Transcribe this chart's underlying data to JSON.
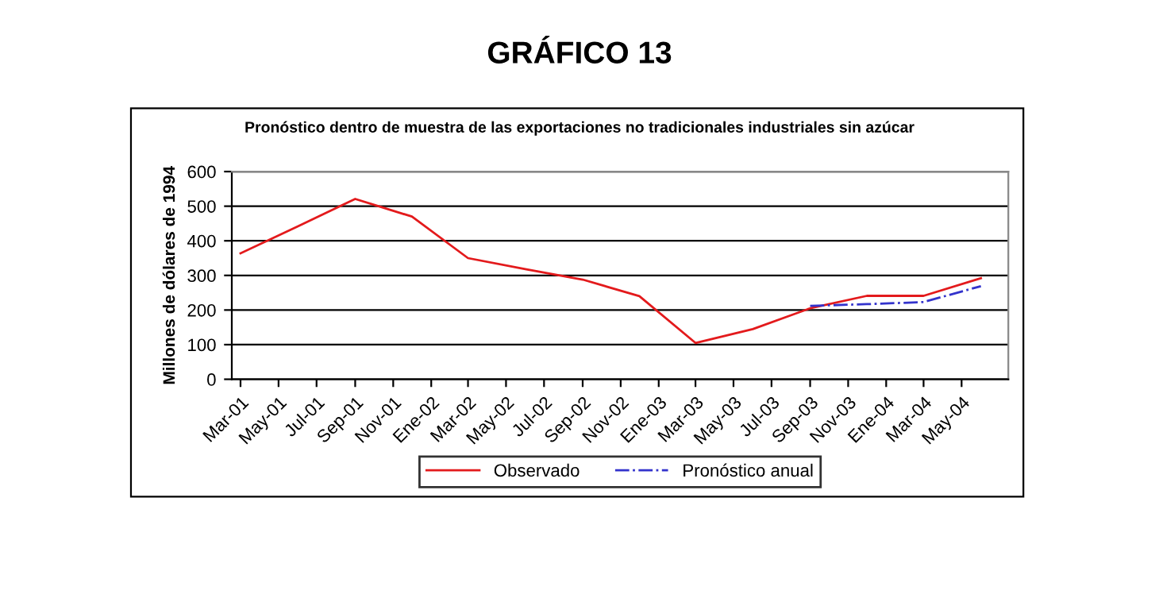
{
  "chart_data": {
    "type": "line",
    "title": "GRÁFICO 13",
    "subtitle": "Pronóstico dentro de muestra de las exportaciones no tradicionales industriales sin azúcar",
    "ylabel": "Millones de dólares de 1994",
    "x": [
      "2001-03",
      "2001-06",
      "2001-09",
      "2001-12",
      "2002-03",
      "2002-06",
      "2002-09",
      "2002-12",
      "2003-03",
      "2003-06",
      "2003-09",
      "2003-12",
      "2004-03",
      "2004-06"
    ],
    "series": [
      {
        "name": "Observado",
        "color": "#e31a1c",
        "line_style": "solid",
        "values": [
          364,
          442,
          521,
          470,
          350,
          318,
          288,
          240,
          105,
          145,
          205,
          241,
          241,
          292
        ]
      },
      {
        "name": "Pronóstico anual",
        "color": "#3333cc",
        "line_style": "dashdot",
        "x": [
          "2003-09",
          "2003-12",
          "2004-03",
          "2004-06"
        ],
        "values": [
          212,
          217,
          223,
          269
        ]
      }
    ],
    "ylim": [
      0,
      600
    ],
    "yticks": [
      0,
      100,
      200,
      300,
      400,
      500,
      600
    ],
    "xlim": [
      "2001-02-15",
      "2004-07-15"
    ],
    "xticks": [
      {
        "value": "2001-03",
        "label": "Mar-01"
      },
      {
        "value": "2001-05",
        "label": "May-01"
      },
      {
        "value": "2001-07",
        "label": "Jul-01"
      },
      {
        "value": "2001-09",
        "label": "Sep-01"
      },
      {
        "value": "2001-11",
        "label": "Nov-01"
      },
      {
        "value": "2002-01",
        "label": "Ene-02"
      },
      {
        "value": "2002-03",
        "label": "Mar-02"
      },
      {
        "value": "2002-05",
        "label": "May-02"
      },
      {
        "value": "2002-07",
        "label": "Jul-02"
      },
      {
        "value": "2002-09",
        "label": "Sep-02"
      },
      {
        "value": "2002-11",
        "label": "Nov-02"
      },
      {
        "value": "2003-01",
        "label": "Ene-03"
      },
      {
        "value": "2003-03",
        "label": "Mar-03"
      },
      {
        "value": "2003-05",
        "label": "May-03"
      },
      {
        "value": "2003-07",
        "label": "Jul-03"
      },
      {
        "value": "2003-09",
        "label": "Sep-03"
      },
      {
        "value": "2003-11",
        "label": "Nov-03"
      },
      {
        "value": "2004-01",
        "label": "Ene-04"
      },
      {
        "value": "2004-03",
        "label": "Mar-04"
      },
      {
        "value": "2004-05",
        "label": "May-04"
      }
    ],
    "grid": "y",
    "legend": "bottom",
    "marker": "none"
  }
}
